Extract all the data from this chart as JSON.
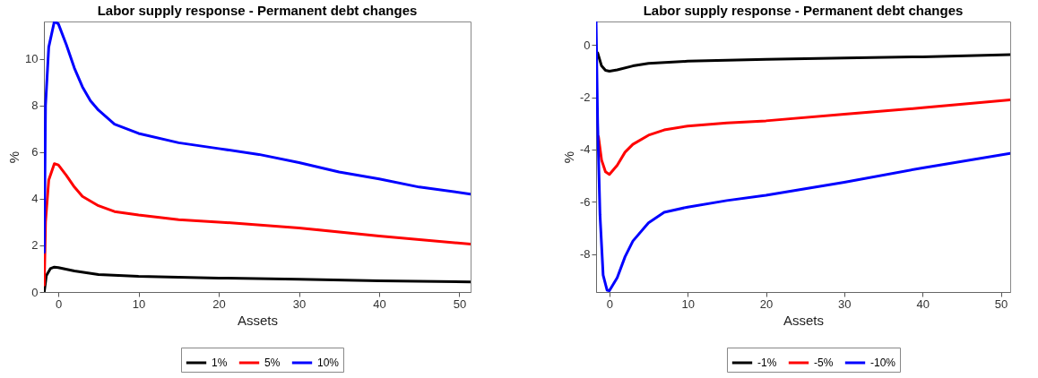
{
  "chart_data": [
    {
      "type": "line",
      "title": "Labor supply response - Permanent debt changes",
      "xlabel": "Assets",
      "ylabel": "%",
      "xlim": [
        -1.8,
        51.4
      ],
      "xticks": [
        0,
        10,
        20,
        30,
        40,
        50
      ],
      "ylim": [
        0,
        11.6
      ],
      "yticks": [
        0,
        2,
        4,
        6,
        8,
        10
      ],
      "legend": "bottom",
      "grid": false,
      "series": [
        {
          "name": "1%",
          "color": "#000000",
          "x": [
            -1.76,
            -1.5,
            -1,
            -0.5,
            0,
            2,
            5,
            10,
            20,
            30,
            40,
            51.4
          ],
          "values": [
            0,
            0.7,
            1.0,
            1.07,
            1.05,
            0.9,
            0.75,
            0.67,
            0.6,
            0.55,
            0.48,
            0.43
          ]
        },
        {
          "name": "5%",
          "color": "#ff0000",
          "x": [
            -1.76,
            -1.6,
            -1.2,
            -0.5,
            0,
            1,
            2,
            3,
            5,
            7,
            10,
            15,
            20,
            30,
            40,
            51.4
          ],
          "values": [
            0.3,
            3,
            4.8,
            5.5,
            5.45,
            5.0,
            4.5,
            4.1,
            3.7,
            3.45,
            3.3,
            3.1,
            3.0,
            2.75,
            2.4,
            2.05
          ]
        },
        {
          "name": "10%",
          "color": "#0000ff",
          "x": [
            -1.76,
            -1.6,
            -1.2,
            -0.5,
            0,
            1,
            2,
            3,
            4,
            5,
            7,
            10,
            15,
            20,
            25,
            30,
            35,
            40,
            45,
            51.4
          ],
          "values": [
            1.7,
            8,
            10.5,
            11.6,
            11.5,
            10.6,
            9.6,
            8.8,
            8.2,
            7.8,
            7.2,
            6.8,
            6.4,
            6.15,
            5.9,
            5.55,
            5.15,
            4.85,
            4.5,
            4.2
          ]
        }
      ]
    },
    {
      "type": "line",
      "title": "Labor supply response - Permanent debt changes",
      "xlabel": "Assets",
      "ylabel": "%",
      "xlim": [
        -1.7,
        51.2
      ],
      "xticks": [
        0,
        10,
        20,
        30,
        40,
        50
      ],
      "ylim": [
        -9.45,
        0.9
      ],
      "yticks": [
        -8,
        -6,
        -4,
        -2,
        0
      ],
      "legend": "bottom",
      "grid": false,
      "series": [
        {
          "name": "-1%",
          "color": "#000000",
          "x": [
            -1.5,
            -1,
            -0.5,
            0,
            1,
            3,
            5,
            10,
            20,
            30,
            40,
            51.2
          ],
          "values": [
            -0.3,
            -0.8,
            -0.97,
            -1.0,
            -0.95,
            -0.8,
            -0.7,
            -0.62,
            -0.55,
            -0.5,
            -0.45,
            -0.37
          ]
        },
        {
          "name": "-5%",
          "color": "#ff0000",
          "x": [
            -1.4,
            -1,
            -0.5,
            0,
            1,
            2,
            3,
            5,
            7,
            10,
            15,
            20,
            30,
            40,
            51.2
          ],
          "values": [
            -3.5,
            -4.4,
            -4.85,
            -4.95,
            -4.6,
            -4.1,
            -3.8,
            -3.45,
            -3.25,
            -3.1,
            -2.98,
            -2.9,
            -2.65,
            -2.4,
            -2.1
          ]
        },
        {
          "name": "-10%",
          "color": "#0000ff",
          "x": [
            -1.7,
            -1.5,
            -1.2,
            -0.8,
            -0.3,
            0,
            1,
            2,
            3,
            5,
            7,
            10,
            15,
            20,
            30,
            40,
            51.2
          ],
          "values": [
            0.9,
            -3,
            -6.5,
            -8.8,
            -9.38,
            -9.4,
            -8.9,
            -8.1,
            -7.5,
            -6.8,
            -6.4,
            -6.2,
            -5.95,
            -5.75,
            -5.25,
            -4.7,
            -4.15
          ]
        }
      ]
    }
  ]
}
